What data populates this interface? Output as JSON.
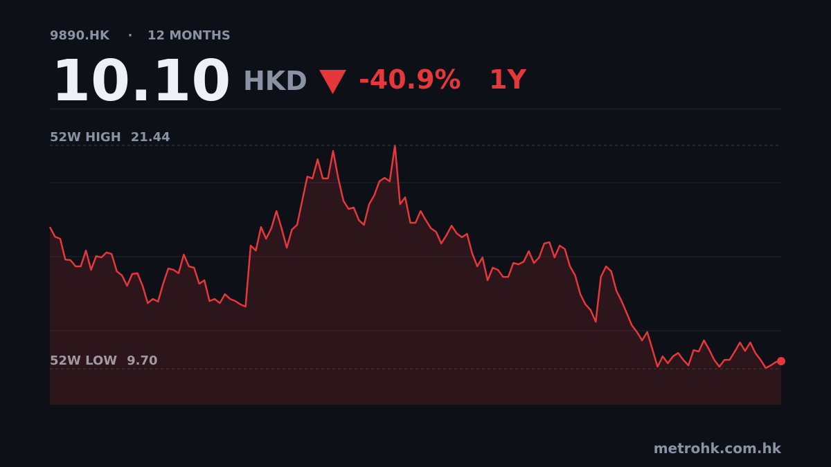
{
  "header": {
    "ticker": "9890.HK",
    "separator": "·",
    "period": "12 MONTHS",
    "price": "10.10",
    "currency": "HKD",
    "change": "-40.9%",
    "range": "1Y"
  },
  "chart_data": {
    "type": "line",
    "color": "#e5383b",
    "ylim": [
      7.81,
      23.37
    ],
    "values": [
      17.15,
      16.64,
      16.53,
      15.44,
      15.41,
      15.08,
      15.08,
      15.91,
      14.9,
      15.62,
      15.55,
      15.81,
      15.73,
      14.82,
      14.61,
      14.06,
      14.68,
      14.72,
      14.06,
      13.15,
      13.37,
      13.23,
      14.17,
      14.97,
      14.9,
      14.72,
      15.7,
      15.08,
      15.01,
      14.17,
      14.35,
      13.26,
      13.37,
      13.15,
      13.62,
      13.37,
      13.26,
      13.08,
      12.97,
      16.17,
      15.91,
      17.15,
      16.53,
      17.08,
      17.99,
      17.08,
      16.06,
      17.01,
      17.26,
      18.53,
      19.8,
      19.7,
      20.71,
      19.7,
      19.7,
      21.15,
      19.7,
      18.53,
      18.1,
      18.17,
      17.51,
      17.26,
      18.35,
      18.82,
      19.55,
      19.73,
      19.55,
      21.44,
      18.35,
      18.71,
      17.37,
      17.37,
      17.99,
      17.51,
      17.08,
      16.9,
      16.28,
      16.71,
      17.22,
      16.82,
      16.61,
      16.79,
      15.77,
      15.08,
      15.55,
      14.35,
      15.01,
      14.9,
      14.53,
      14.53,
      15.26,
      15.19,
      15.33,
      15.88,
      15.26,
      15.55,
      16.28,
      16.35,
      15.55,
      16.17,
      15.99,
      15.08,
      14.61,
      13.62,
      13.08,
      12.79,
      12.17,
      14.53,
      15.08,
      14.82,
      13.81,
      13.26,
      12.64,
      11.99,
      11.63,
      11.19,
      11.63,
      10.72,
      9.81,
      10.35,
      9.99,
      10.35,
      10.53,
      10.17,
      9.88,
      10.68,
      10.61,
      11.19,
      10.72,
      10.17,
      9.81,
      10.17,
      10.17,
      10.61,
      11.08,
      10.64,
      11.08,
      10.53,
      10.17,
      9.74,
      9.88,
      10.06,
      10.1
    ],
    "reference_lines": [
      {
        "label": "52W HIGH",
        "value": 21.44
      },
      {
        "label": "52W LOW",
        "value": {
          "value": 9.7,
          "label": "9.70"
        }
      }
    ]
  },
  "footer": "metrohk.com.hk"
}
